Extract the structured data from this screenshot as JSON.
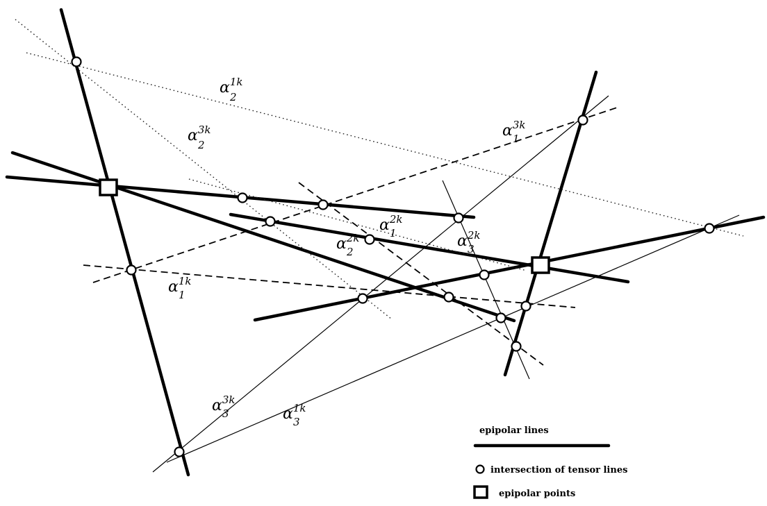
{
  "labels": [
    {
      "id": "a21k",
      "main": "α",
      "sub": "2",
      "sup": "1k"
    },
    {
      "id": "a23k",
      "main": "α",
      "sub": "2",
      "sup": "3k"
    },
    {
      "id": "a13k",
      "main": "α",
      "sub": "1",
      "sup": "3k"
    },
    {
      "id": "a12k",
      "main": "α",
      "sub": "1",
      "sup": "2k"
    },
    {
      "id": "a22k",
      "main": "α",
      "sub": "2",
      "sup": "2k"
    },
    {
      "id": "a32k",
      "main": "α",
      "sub": "3",
      "sup": "2k"
    },
    {
      "id": "a11k",
      "main": "α",
      "sub": "1",
      "sup": "1k"
    },
    {
      "id": "a33k",
      "main": "α",
      "sub": "3",
      "sup": "3k"
    },
    {
      "id": "a31k",
      "main": "α",
      "sub": "3",
      "sup": "1k"
    }
  ],
  "legend": {
    "epipolar_lines": "epipolar lines",
    "intersection": "intersection of tensor lines",
    "epipolar_points": "epipolar points"
  }
}
